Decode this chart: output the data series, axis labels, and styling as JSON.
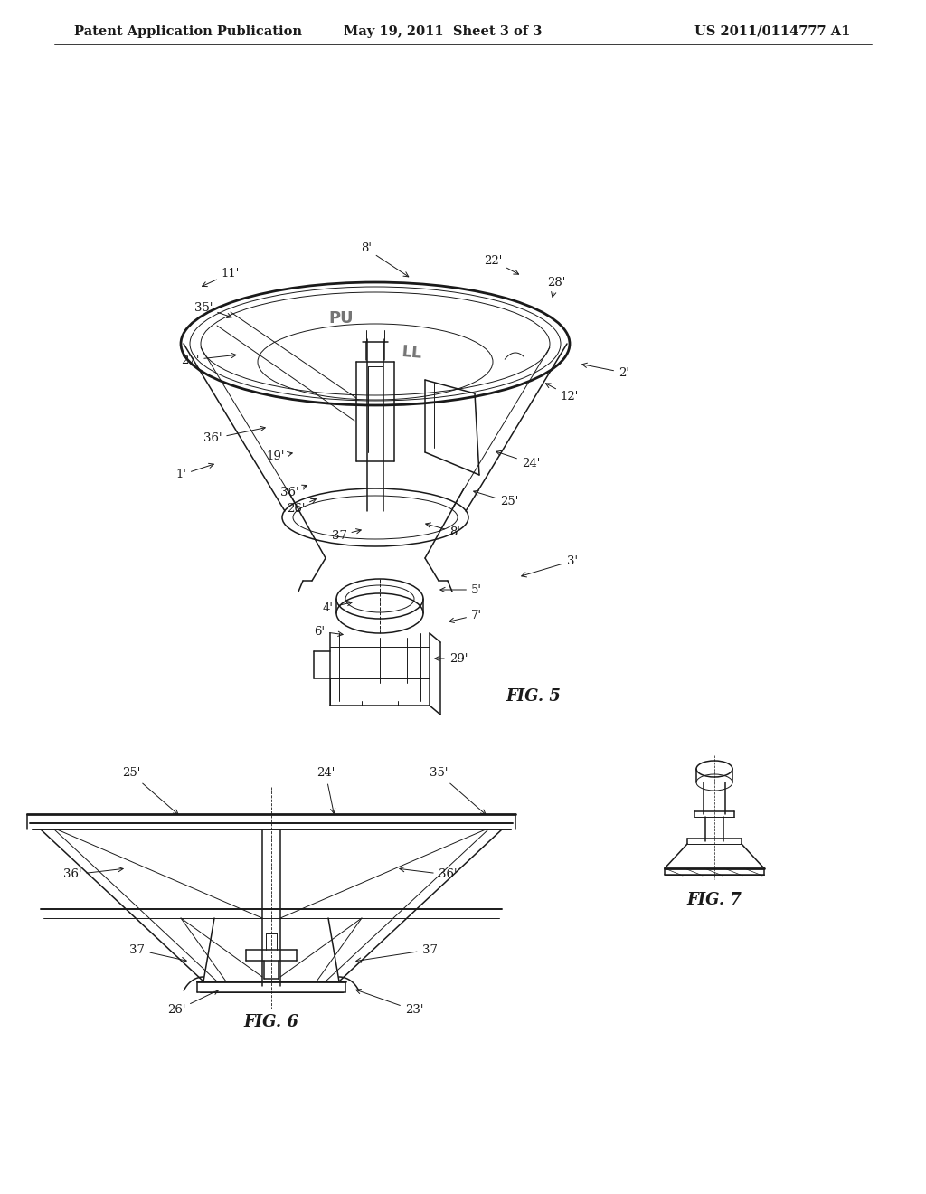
{
  "background_color": "#ffffff",
  "header": {
    "left_text": "Patent Application Publication",
    "center_text": "May 19, 2011  Sheet 3 of 3",
    "right_text": "US 2011/0114777 A1",
    "fontsize": 10.5
  },
  "fig5_label": "FIG. 5",
  "fig6_label": "FIG. 6",
  "fig7_label": "FIG. 7",
  "line_color": "#1a1a1a",
  "label_fontsize": 9.5,
  "fig_label_fontsize": 13
}
